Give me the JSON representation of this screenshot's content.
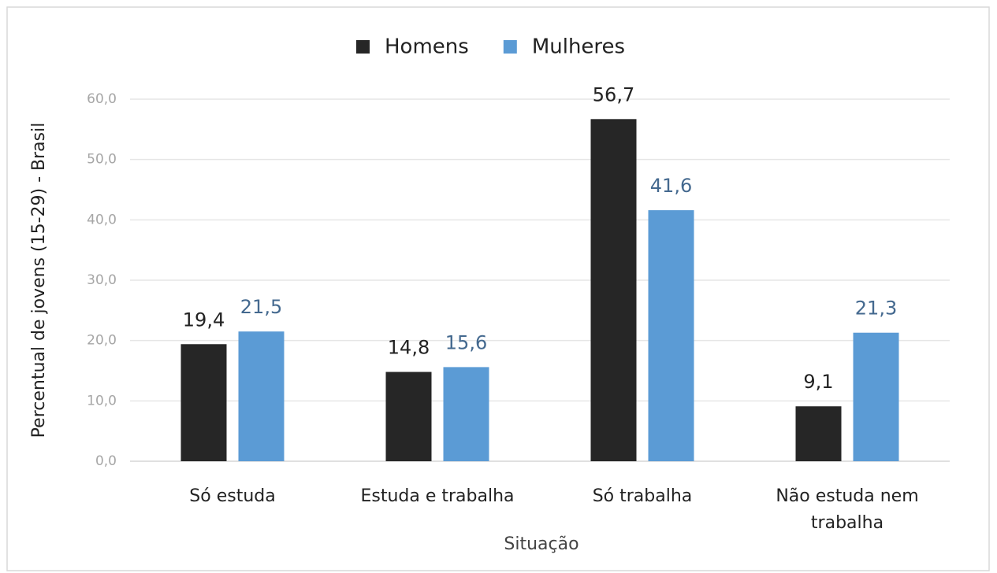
{
  "chart_data": {
    "type": "bar",
    "categories": [
      "Só estuda",
      "Estuda e trabalha",
      "Só trabalha",
      "Não estuda nem trabalha"
    ],
    "series": [
      {
        "name": "Homens",
        "color": "#262626",
        "label_color": "#222222",
        "values": [
          19.4,
          14.8,
          56.7,
          9.1
        ],
        "value_labels": [
          "19,4",
          "14,8",
          "56,7",
          "9,1"
        ]
      },
      {
        "name": "Mulheres",
        "color": "#5b9bd5",
        "label_color": "#44698f",
        "values": [
          21.5,
          15.6,
          41.6,
          21.3
        ],
        "value_labels": [
          "21,5",
          "15,6",
          "41,6",
          "21,3"
        ]
      }
    ],
    "x_label": "Situação",
    "y_label": "Percentual de jovens (15-29) - Brasil",
    "ylim": [
      0,
      60
    ],
    "yticks": [
      {
        "value": 0,
        "label": "0,0"
      },
      {
        "value": 10,
        "label": "10,0"
      },
      {
        "value": 20,
        "label": "20,0"
      },
      {
        "value": 30,
        "label": "30,0"
      },
      {
        "value": 40,
        "label": "40,0"
      },
      {
        "value": 50,
        "label": "50,0"
      },
      {
        "value": 60,
        "label": "60,0"
      }
    ],
    "grid": true,
    "legend": "top"
  }
}
